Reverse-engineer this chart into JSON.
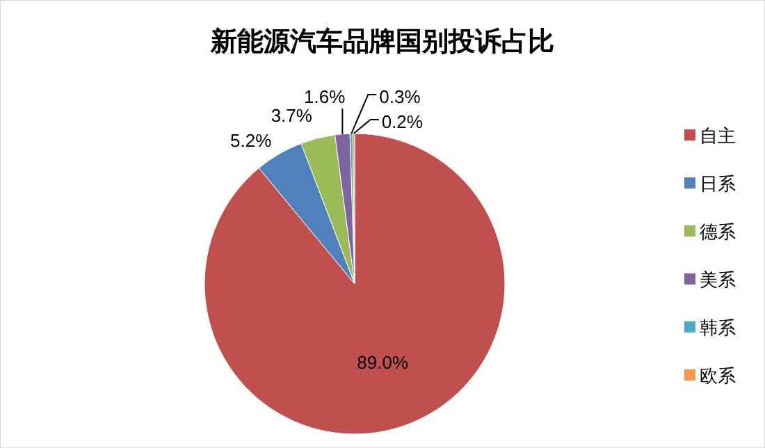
{
  "chart_data": {
    "type": "pie",
    "title": "新能源汽车品牌国别投诉占比",
    "categories": [
      "自主",
      "日系",
      "德系",
      "美系",
      "韩系",
      "欧系"
    ],
    "values": [
      89.0,
      5.2,
      3.7,
      1.6,
      0.3,
      0.2
    ],
    "value_labels": [
      "89.0%",
      "5.2%",
      "3.7%",
      "1.6%",
      "0.3%",
      "0.2%"
    ],
    "colors": [
      "#c0504d",
      "#4f81bd",
      "#9bbb59",
      "#8064a2",
      "#4bacc6",
      "#f79646"
    ],
    "legend": "right"
  }
}
